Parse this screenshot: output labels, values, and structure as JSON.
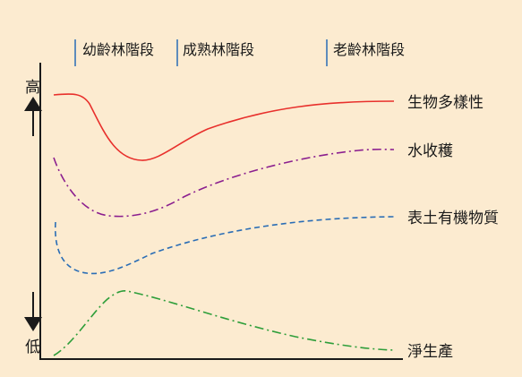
{
  "stages": [
    "幼齡林階段",
    "成熟林階段",
    "老齡林階段"
  ],
  "y_axis": {
    "high": "高",
    "low": "低"
  },
  "curves": [
    {
      "name": "生物多樣性",
      "color": "#e8302c",
      "style": "solid"
    },
    {
      "name": "水收穫",
      "color": "#8b1f8f",
      "style": "dash-dot"
    },
    {
      "name": "表土有機物質",
      "color": "#2a6db5",
      "style": "dashed"
    },
    {
      "name": "淨生產",
      "color": "#2e9e3a",
      "style": "dash-dot"
    }
  ]
}
